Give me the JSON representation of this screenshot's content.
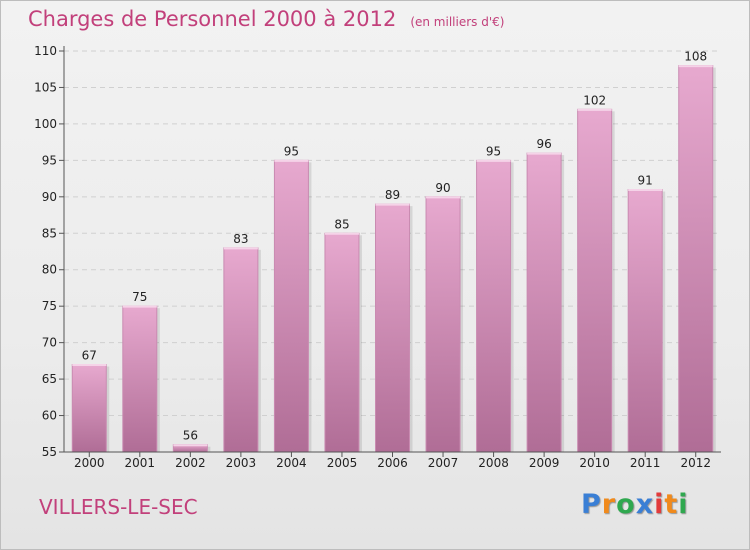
{
  "header": {
    "title": "Charges de Personnel 2000 à 2012",
    "subtitle": "(en milliers d'€)"
  },
  "footer": {
    "commune": "VILLERS-LE-SEC",
    "logo_text": "Proxiti",
    "logo_colors": [
      "#3a7fd5",
      "#f08a1c",
      "#2fa84f",
      "#3a7fd5",
      "#e23b3b",
      "#f08a1c",
      "#2fa84f"
    ]
  },
  "chart_data": {
    "type": "bar",
    "title": "Charges de Personnel 2000 à 2012",
    "subtitle": "(en milliers d'€)",
    "xlabel": "",
    "ylabel": "",
    "categories": [
      "2000",
      "2001",
      "2002",
      "2003",
      "2004",
      "2005",
      "2006",
      "2007",
      "2008",
      "2009",
      "2010",
      "2011",
      "2012"
    ],
    "values": [
      67,
      75,
      56,
      83,
      95,
      85,
      89,
      90,
      95,
      96,
      102,
      91,
      108
    ],
    "ylim": [
      55,
      110
    ],
    "yticks": [
      55,
      60,
      65,
      70,
      75,
      80,
      85,
      90,
      95,
      100,
      105,
      110
    ],
    "grid": true,
    "bar_color_top": "#e7a9cf",
    "bar_color_bottom": "#b06d96"
  }
}
